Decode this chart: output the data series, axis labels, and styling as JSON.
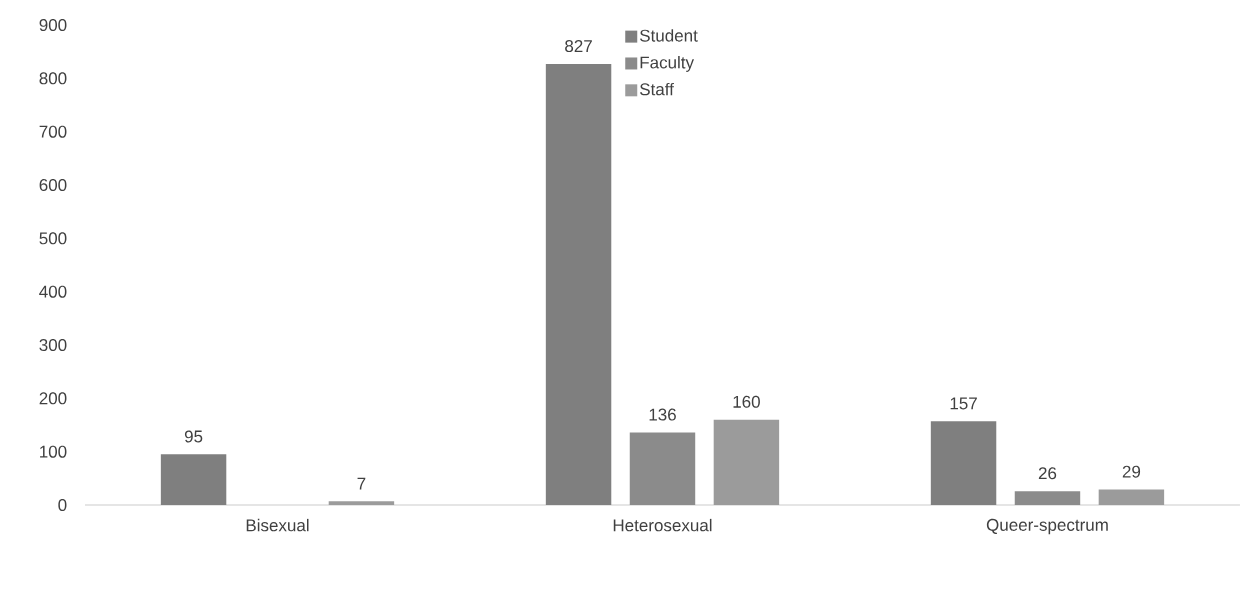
{
  "chart_data": {
    "type": "bar",
    "categories": [
      "Bisexual",
      "Heterosexual",
      "Queer-spectrum"
    ],
    "series": [
      {
        "name": "Student",
        "color": "#7f7f7f",
        "values": [
          95,
          827,
          157
        ]
      },
      {
        "name": "Faculty",
        "color": "#8b8b8b",
        "values": [
          null,
          136,
          26
        ]
      },
      {
        "name": "Staff",
        "color": "#9b9b9b",
        "values": [
          7,
          160,
          29
        ]
      }
    ],
    "ylim": [
      0,
      900
    ],
    "yticks": [
      0,
      100,
      200,
      300,
      400,
      500,
      600,
      700,
      800,
      900
    ],
    "data_labels": true,
    "legend": "top",
    "grid": false
  }
}
